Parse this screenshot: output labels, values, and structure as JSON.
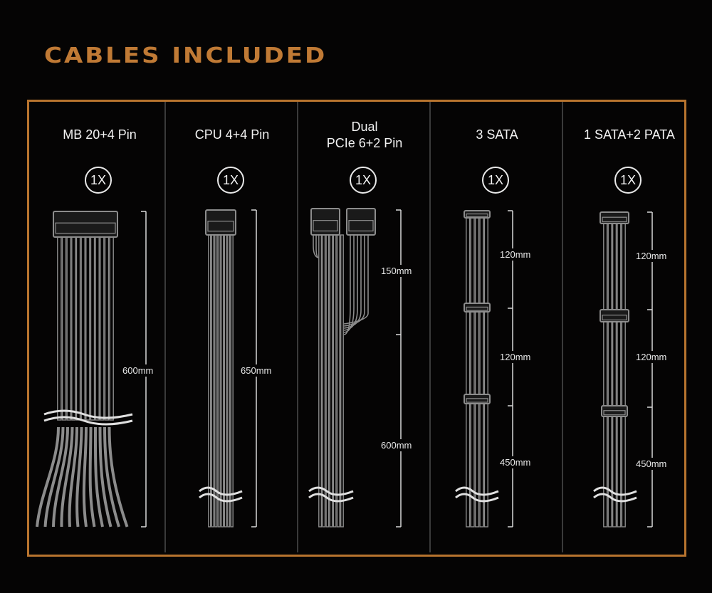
{
  "title": "CABLES INCLUDED",
  "colors": {
    "accent": "#b8742e",
    "title": "#c07a35",
    "cable": "#8c8c8c",
    "background": "#050404"
  },
  "columns": [
    {
      "name": "MB 20+4 Pin",
      "quantity": "1X",
      "lengths": [
        "600mm"
      ]
    },
    {
      "name": "CPU 4+4 Pin",
      "quantity": "1X",
      "lengths": [
        "650mm"
      ]
    },
    {
      "name": "Dual\nPCIe 6+2 Pin",
      "name_line1": "Dual",
      "name_line2": "PCIe 6+2 Pin",
      "quantity": "1X",
      "lengths": [
        "150mm",
        "600mm"
      ]
    },
    {
      "name": "3 SATA",
      "quantity": "1X",
      "lengths": [
        "120mm",
        "120mm",
        "450mm"
      ]
    },
    {
      "name": "1 SATA+2 PATA",
      "quantity": "1X",
      "lengths": [
        "120mm",
        "120mm",
        "450mm"
      ]
    }
  ]
}
